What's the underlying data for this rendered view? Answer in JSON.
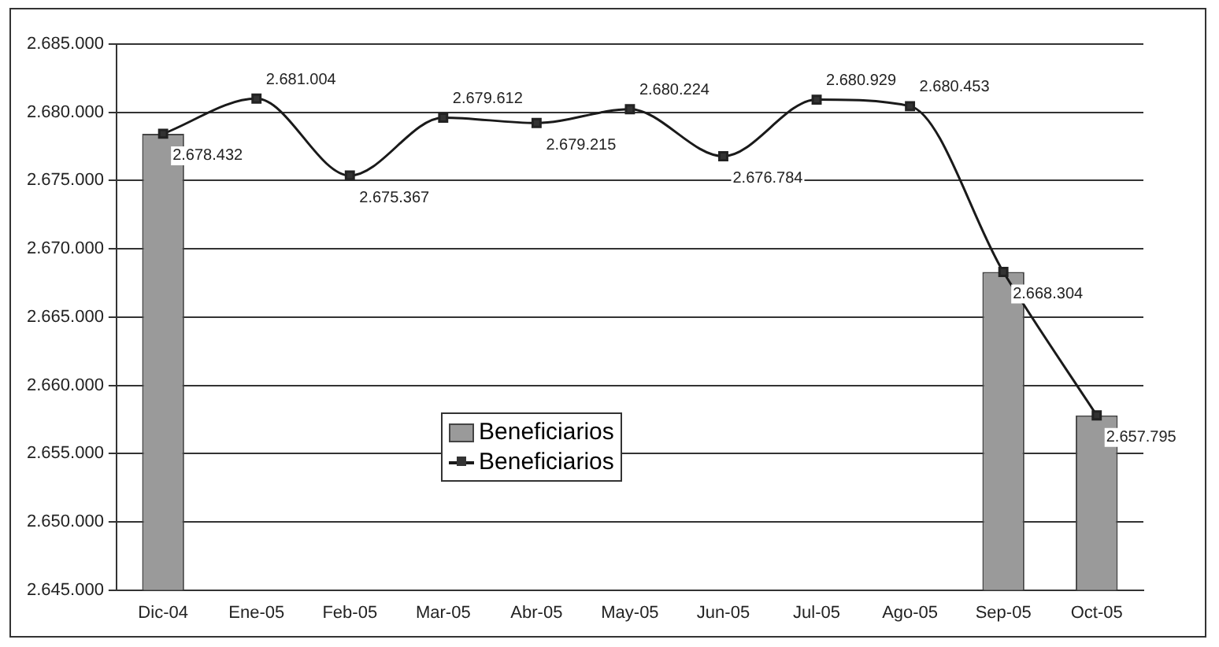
{
  "chart_data": {
    "type": "bar",
    "categories": [
      "Dic-04",
      "Ene-05",
      "Feb-05",
      "Mar-05",
      "Abr-05",
      "May-05",
      "Jun-05",
      "Jul-05",
      "Ago-05",
      "Sep-05",
      "Oct-05"
    ],
    "series": [
      {
        "name": "Beneficiarios",
        "color": "#9a9a9a",
        "values": [
          2678432,
          null,
          null,
          null,
          null,
          null,
          null,
          null,
          null,
          2668304,
          2657795
        ]
      },
      {
        "name": "Beneficiarios",
        "type": "line",
        "color": "#1a1a1a",
        "values": [
          2678432,
          2681004,
          2675367,
          2679612,
          2679215,
          2680224,
          2676784,
          2680929,
          2680453,
          2668304,
          2657795
        ],
        "value_labels": [
          "2.678.432",
          "2.681.004",
          "2.675.367",
          "2.679.612",
          "2.679.215",
          "2.680.224",
          "2.676.784",
          "2.680.929",
          "2.680.453",
          "2.668.304",
          "2.657.795"
        ]
      }
    ],
    "ylim": [
      2645000,
      2685000
    ],
    "yticks": [
      {
        "value": 2645000,
        "label": "2.645.000"
      },
      {
        "value": 2650000,
        "label": "2.650.000"
      },
      {
        "value": 2655000,
        "label": "2.655.000"
      },
      {
        "value": 2660000,
        "label": "2.660.000"
      },
      {
        "value": 2665000,
        "label": "2.665.000"
      },
      {
        "value": 2670000,
        "label": "2.670.000"
      },
      {
        "value": 2675000,
        "label": "2.675.000"
      },
      {
        "value": 2680000,
        "label": "2.680.000"
      },
      {
        "value": 2685000,
        "label": "2.685.000"
      }
    ],
    "grid": "y",
    "legend": "bottom",
    "marker": "square"
  }
}
